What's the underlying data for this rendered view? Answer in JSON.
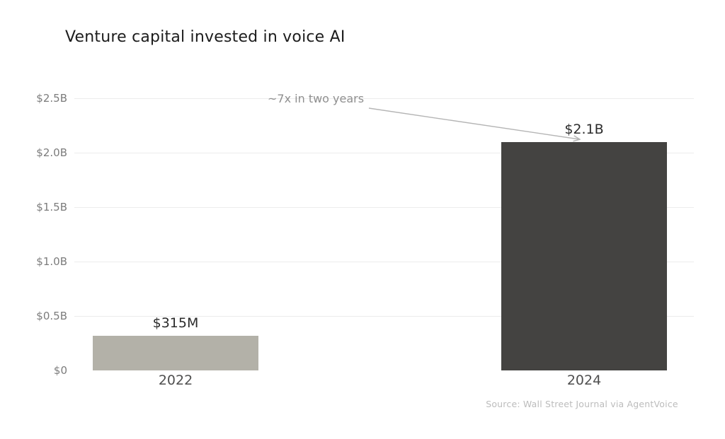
{
  "title": "Venture capital invested in voice AI",
  "chart_data": {
    "type": "bar",
    "title": "Venture capital invested in voice AI",
    "categories": [
      "2022",
      "2024"
    ],
    "values": [
      0.315,
      2.1
    ],
    "values_unit": "billions_usd",
    "value_labels": [
      "$315M",
      "$2.1B"
    ],
    "bar_colors": [
      "#b3b1a8",
      "#444341"
    ],
    "xlabel": "",
    "ylabel": "",
    "ylim": [
      0,
      2.5
    ],
    "ytick_values": [
      2.5,
      2.0,
      1.5,
      1.0,
      0.5,
      0
    ],
    "ytick_labels": [
      "$2.5B",
      "$2.0B",
      "$1.5B",
      "$1.0B",
      "$0.5B",
      "$0"
    ],
    "grid": true,
    "legend": false,
    "annotation": {
      "text": "~7x in two years",
      "points_to": "2024 bar top"
    },
    "source": "Source: Wall Street Journal via AgentVoice"
  },
  "colors": {
    "background": "#ffffff",
    "gridline": "#ececec",
    "title_text": "#1c1c1c",
    "ytick_text": "#7c7c7c",
    "xtick_text": "#4f4f4f",
    "value_label_text": "#2b2b2b",
    "annotation_text": "#8f8f8f",
    "arrow": "#b5b5b5",
    "source_text": "#bcbcbc"
  }
}
